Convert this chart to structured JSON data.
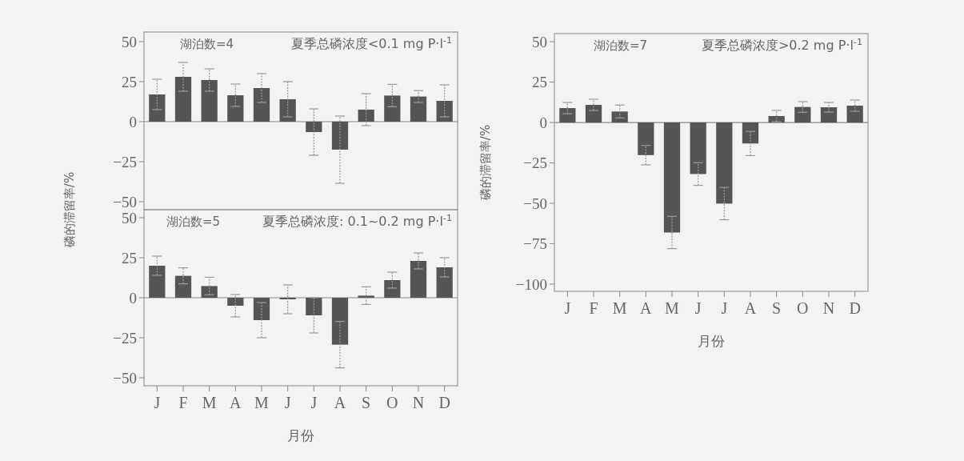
{
  "chart_data": [
    {
      "type": "bar",
      "categories": [
        null,
        null,
        null,
        null,
        null,
        null,
        null,
        null,
        null,
        null,
        null,
        null
      ],
      "values": [
        17,
        28,
        26,
        16.5,
        21,
        14,
        -6.5,
        -17.5,
        7.5,
        16.3,
        15.7,
        13
      ],
      "errors": [
        9.5,
        9,
        7,
        7,
        9,
        11,
        14.5,
        21,
        10,
        7,
        3.7,
        10
      ],
      "color": "#555555",
      "ylim": [
        -55,
        56
      ],
      "yticks": [
        -50,
        -25,
        0,
        25,
        50
      ],
      "tick_labels": "y",
      "annotations": [
        "湖泊数=4",
        "夏季总磷浓度<0.1 mg P·l$^{-1}$"
      ]
    },
    {
      "type": "bar",
      "categories": [
        "J",
        "F",
        "M",
        "A",
        "M",
        "J",
        "J",
        "A",
        "S",
        "O",
        "N",
        "D"
      ],
      "values": [
        20,
        13.7,
        7.3,
        -5,
        -14,
        -1,
        -11,
        -29.3,
        1.3,
        11,
        23,
        19
      ],
      "errors": [
        6,
        5,
        5.5,
        7,
        11,
        9,
        11,
        14.5,
        5.5,
        5,
        5,
        6
      ],
      "color": "#555555",
      "ylim": [
        -55,
        55
      ],
      "yticks": [
        -50,
        -25,
        0,
        25,
        50
      ],
      "xlabel": "月份",
      "ylabel": "磷的滞留率/%",
      "annotations": [
        "湖泊数=5",
        "夏季总磷浓度: 0.1~0.2 mg P·l$^{-1}$"
      ]
    },
    {
      "type": "bar",
      "categories": [
        "J",
        "F",
        "M",
        "A",
        "M",
        "J",
        "J",
        "A",
        "S",
        "O",
        "N",
        "D"
      ],
      "values": [
        8.9,
        10.9,
        6.8,
        -20.2,
        -68.1,
        -31.9,
        -50.2,
        -13,
        4,
        9.6,
        9.4,
        10.4
      ],
      "errors": [
        3.5,
        3.5,
        4,
        6,
        10,
        7,
        10,
        7.5,
        3.5,
        3.3,
        3,
        3.5
      ],
      "color": "#555555",
      "ylim": [
        -104.5,
        55
      ],
      "yticks": [
        -100,
        -75,
        -50,
        -25,
        0,
        25,
        50
      ],
      "xlabel": "月份",
      "ylabel": "磷的滞留率/%",
      "annotations": [
        "湖泊数=7",
        "夏季总磷浓度>0.2 mg P·l$^{-1}$"
      ]
    }
  ]
}
